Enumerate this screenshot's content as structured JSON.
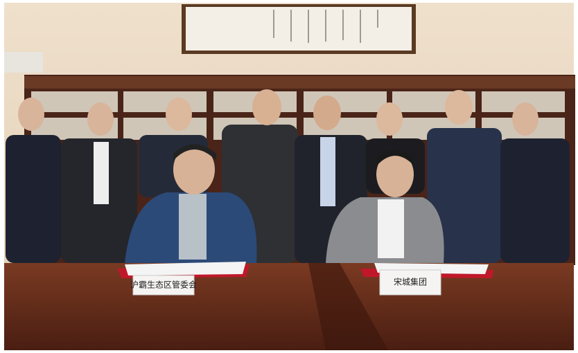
{
  "name_cards": [
    "沪霸生态区管委会",
    "宋城集团"
  ]
}
